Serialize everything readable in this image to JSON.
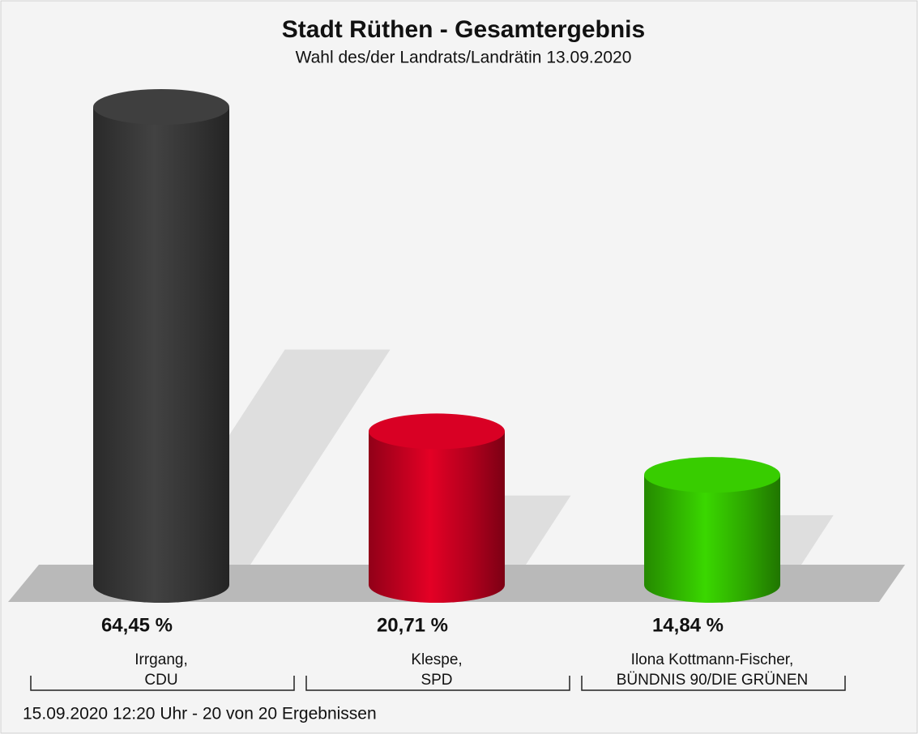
{
  "chart_data": {
    "type": "cylinder-bar",
    "title": "Stadt Rüthen - Gesamtergebnis",
    "subtitle": "Wahl des/der Landrats/Landrätin 13.09.2020",
    "categories": [
      [
        "Irrgang,",
        "CDU"
      ],
      [
        "Klespe,",
        "SPD"
      ],
      [
        "Ilona Kottmann-Fischer,",
        "BÜNDNIS 90/DIE GRÜNEN"
      ]
    ],
    "values": [
      64.45,
      20.71,
      14.84
    ],
    "value_labels": [
      "64,45 %",
      "20,71 %",
      "14,84 %"
    ],
    "colors": [
      "#3c3c3c",
      "#cf0022",
      "#35c300"
    ],
    "footer": "15.09.2020 12:20 Uhr - 20 von 20 Ergebnissen"
  }
}
